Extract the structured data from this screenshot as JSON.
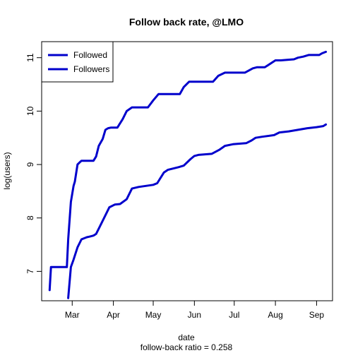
{
  "chart_data": {
    "type": "line",
    "title": "Follow back rate, @LMO",
    "xlabel": "date",
    "subtitle": "follow-back ratio = 0.258",
    "ylabel": "log(users)",
    "x_ticks": [
      "Mar",
      "Apr",
      "May",
      "Jun",
      "Jul",
      "Aug",
      "Sep"
    ],
    "y_ticks": [
      "7",
      "8",
      "9",
      "10",
      "11"
    ],
    "xlim": [
      "2010-02-06",
      "2010-09-13"
    ],
    "ylim": [
      6.45,
      11.3
    ],
    "grid": false,
    "legend": {
      "position": "top-left",
      "entries": [
        "Followed",
        "Followers"
      ]
    },
    "series": [
      {
        "name": "Followed",
        "color": "#0000cc",
        "x": [
          "2010-02-12",
          "2010-02-13",
          "2010-02-25",
          "2010-02-26",
          "2010-02-28",
          "2010-03-02",
          "2010-03-03",
          "2010-03-05",
          "2010-03-07",
          "2010-03-08",
          "2010-03-17",
          "2010-03-19",
          "2010-03-21",
          "2010-03-24",
          "2010-03-26",
          "2010-03-28",
          "2010-03-30",
          "2010-04-04",
          "2010-04-08",
          "2010-04-11",
          "2010-04-15",
          "2010-04-17",
          "2010-04-19",
          "2010-04-27",
          "2010-05-01",
          "2010-05-05",
          "2010-05-08",
          "2010-05-21",
          "2010-05-24",
          "2010-05-28",
          "2010-06-01",
          "2010-06-15",
          "2010-06-19",
          "2010-06-24",
          "2010-06-27",
          "2010-07-01",
          "2010-07-09",
          "2010-07-15",
          "2010-07-18",
          "2010-07-21",
          "2010-07-24",
          "2010-08-01",
          "2010-08-05",
          "2010-08-15",
          "2010-08-18",
          "2010-08-22",
          "2010-08-26",
          "2010-09-03",
          "2010-09-05",
          "2010-09-08"
        ],
        "y": [
          6.65,
          7.08,
          7.08,
          7.6,
          8.3,
          8.6,
          8.68,
          9.0,
          9.05,
          9.07,
          9.07,
          9.15,
          9.35,
          9.48,
          9.65,
          9.68,
          9.69,
          9.69,
          9.85,
          10.0,
          10.07,
          10.07,
          10.07,
          10.07,
          10.2,
          10.32,
          10.32,
          10.32,
          10.45,
          10.55,
          10.55,
          10.55,
          10.66,
          10.72,
          10.72,
          10.72,
          10.72,
          10.8,
          10.82,
          10.82,
          10.82,
          10.95,
          10.95,
          10.97,
          11.0,
          11.02,
          11.05,
          11.05,
          11.08,
          11.11
        ]
      },
      {
        "name": "Followers",
        "color": "#0000cc",
        "x": [
          "2010-02-26",
          "2010-02-28",
          "2010-03-02",
          "2010-03-05",
          "2010-03-08",
          "2010-03-12",
          "2010-03-14",
          "2010-03-17",
          "2010-03-19",
          "2010-03-22",
          "2010-03-26",
          "2010-03-29",
          "2010-04-02",
          "2010-04-06",
          "2010-04-11",
          "2010-04-15",
          "2010-04-20",
          "2010-05-01",
          "2010-05-04",
          "2010-05-09",
          "2010-05-12",
          "2010-05-20",
          "2010-05-24",
          "2010-05-29",
          "2010-06-01",
          "2010-06-04",
          "2010-06-14",
          "2010-06-20",
          "2010-06-24",
          "2010-06-30",
          "2010-07-10",
          "2010-07-14",
          "2010-07-17",
          "2010-07-22",
          "2010-07-31",
          "2010-08-04",
          "2010-08-11",
          "2010-08-18",
          "2010-08-25",
          "2010-09-01",
          "2010-09-06",
          "2010-09-08"
        ],
        "y": [
          6.5,
          7.08,
          7.22,
          7.45,
          7.6,
          7.64,
          7.65,
          7.67,
          7.7,
          7.85,
          8.05,
          8.2,
          8.25,
          8.26,
          8.35,
          8.55,
          8.58,
          8.62,
          8.65,
          8.85,
          8.9,
          8.95,
          8.98,
          9.1,
          9.16,
          9.18,
          9.2,
          9.28,
          9.35,
          9.38,
          9.4,
          9.45,
          9.5,
          9.52,
          9.55,
          9.6,
          9.62,
          9.65,
          9.68,
          9.7,
          9.72,
          9.75
        ]
      }
    ]
  }
}
